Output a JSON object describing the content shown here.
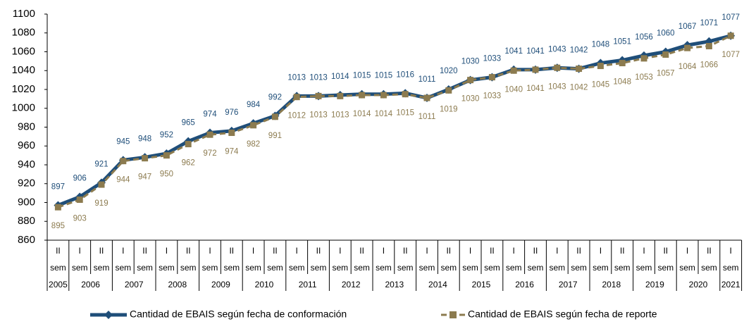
{
  "chart_data": {
    "type": "line",
    "categories": [
      "II",
      "I",
      "II",
      "I",
      "II",
      "I",
      "II",
      "I",
      "II",
      "I",
      "II",
      "I",
      "II",
      "I",
      "II",
      "I",
      "II",
      "I",
      "II",
      "I",
      "II",
      "I",
      "II",
      "I",
      "II",
      "I",
      "II",
      "I",
      "II",
      "I",
      "II",
      "I"
    ],
    "category_sublabel": "sem",
    "groups": [
      {
        "label": "2005",
        "count": 1
      },
      {
        "label": "2006",
        "count": 2
      },
      {
        "label": "2007",
        "count": 2
      },
      {
        "label": "2008",
        "count": 2
      },
      {
        "label": "2009",
        "count": 2
      },
      {
        "label": "2010",
        "count": 2
      },
      {
        "label": "2011",
        "count": 2
      },
      {
        "label": "2012",
        "count": 2
      },
      {
        "label": "2013",
        "count": 2
      },
      {
        "label": "2014",
        "count": 2
      },
      {
        "label": "2015",
        "count": 2
      },
      {
        "label": "2016",
        "count": 2
      },
      {
        "label": "2017",
        "count": 2
      },
      {
        "label": "2018",
        "count": 2
      },
      {
        "label": "2019",
        "count": 2
      },
      {
        "label": "2020",
        "count": 2
      },
      {
        "label": "2021",
        "count": 1
      }
    ],
    "series": [
      {
        "name": "Cantidad de EBAIS según fecha de conformación",
        "color": "#1f4e79",
        "values": [
          897,
          906,
          921,
          945,
          948,
          952,
          965,
          974,
          976,
          984,
          992,
          1013,
          1013,
          1014,
          1015,
          1015,
          1016,
          1011,
          1020,
          1030,
          1033,
          1041,
          1041,
          1043,
          1042,
          1048,
          1051,
          1056,
          1060,
          1067,
          1071,
          1077
        ]
      },
      {
        "name": "Cantidad de EBAIS según fecha de reporte",
        "color": "#8c7b4f",
        "values": [
          895,
          903,
          919,
          944,
          947,
          950,
          962,
          972,
          974,
          982,
          991,
          1012,
          1013,
          1013,
          1014,
          1014,
          1015,
          1011,
          1019,
          1030,
          1033,
          1040,
          1041,
          1043,
          1042,
          1045,
          1048,
          1053,
          1057,
          1064,
          1066,
          1077
        ]
      }
    ],
    "ylim": [
      860,
      1100
    ],
    "yticks": [
      860,
      880,
      900,
      920,
      940,
      960,
      980,
      1000,
      1020,
      1040,
      1060,
      1080,
      1100
    ]
  }
}
